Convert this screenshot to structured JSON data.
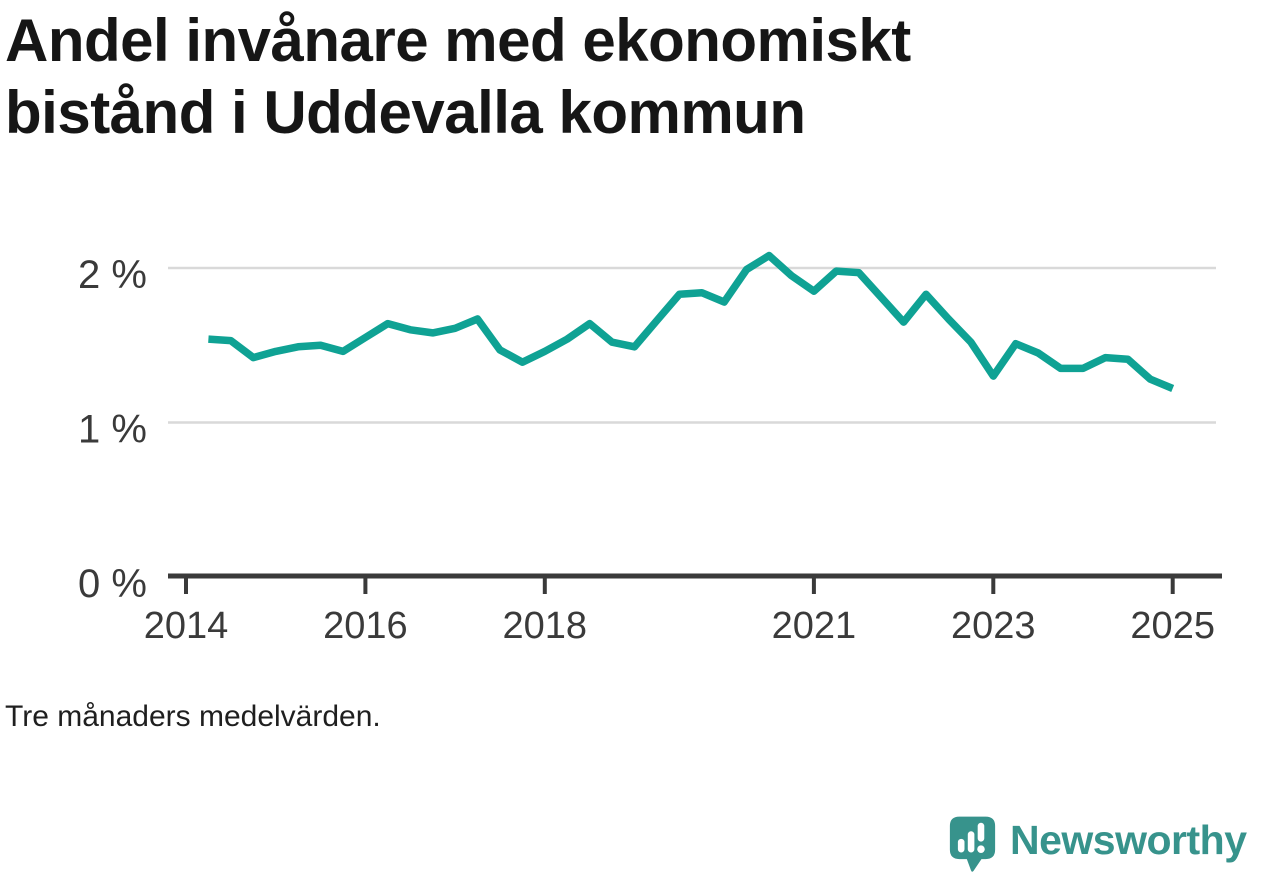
{
  "title": "Andel invånare med ekonomiskt bistånd i Uddevalla kommun",
  "footnote": "Tre månaders medelvärden.",
  "branding": {
    "logo_text": "Newsworthy",
    "logo_color": "#37938c",
    "logo_icon": "speech-bubble-bar-chart-exclamation"
  },
  "colors": {
    "line": "#0fa294",
    "grid": "#d9d9d9",
    "axis": "#3a3a3a",
    "axis_text": "#3a3a3a",
    "title_text": "#161616"
  },
  "chart_data": {
    "type": "line",
    "title": "Andel invånare med ekonomiskt bistånd i Uddevalla kommun",
    "note": "Tre månaders medelvärden.",
    "xlabel": "",
    "ylabel": "",
    "unit": "%",
    "grid": "horizontal",
    "legend": "none",
    "x_axis": {
      "range": [
        2013.8,
        2025.55
      ],
      "ticks": [
        {
          "value": 2014,
          "label": "2014"
        },
        {
          "value": 2016,
          "label": "2016"
        },
        {
          "value": 2018,
          "label": "2018"
        },
        {
          "value": 2021,
          "label": "2021"
        },
        {
          "value": 2023,
          "label": "2023"
        },
        {
          "value": 2025,
          "label": "2025"
        }
      ]
    },
    "y_axis": {
      "range": [
        0,
        2.18
      ],
      "ticks": [
        {
          "value": 0,
          "label": "0 %"
        },
        {
          "value": 1,
          "label": "1 %"
        },
        {
          "value": 2,
          "label": "2 %"
        }
      ]
    },
    "series": [
      {
        "name": "Andel invånare med ekonomiskt bistånd, Uddevalla kommun",
        "color": "#0fa294",
        "x": [
          2014.25,
          2014.5,
          2014.75,
          2015.0,
          2015.25,
          2015.5,
          2015.75,
          2016.0,
          2016.25,
          2016.5,
          2016.75,
          2017.0,
          2017.25,
          2017.5,
          2017.75,
          2018.0,
          2018.25,
          2018.5,
          2018.75,
          2019.0,
          2019.25,
          2019.5,
          2019.75,
          2020.0,
          2020.25,
          2020.5,
          2020.75,
          2021.0,
          2021.25,
          2021.5,
          2021.75,
          2022.0,
          2022.25,
          2022.5,
          2022.75,
          2023.0,
          2023.25,
          2023.5,
          2023.75,
          2024.0,
          2024.25,
          2024.5,
          2024.75,
          2025.0
        ],
        "y": [
          1.54,
          1.53,
          1.42,
          1.46,
          1.49,
          1.5,
          1.46,
          1.55,
          1.64,
          1.6,
          1.58,
          1.61,
          1.67,
          1.47,
          1.39,
          1.46,
          1.54,
          1.64,
          1.52,
          1.49,
          1.66,
          1.83,
          1.84,
          1.78,
          1.99,
          2.08,
          1.95,
          1.85,
          1.98,
          1.97,
          1.81,
          1.65,
          1.83,
          1.67,
          1.52,
          1.3,
          1.51,
          1.45,
          1.35,
          1.35,
          1.42,
          1.41,
          1.28,
          1.22
        ]
      }
    ]
  }
}
